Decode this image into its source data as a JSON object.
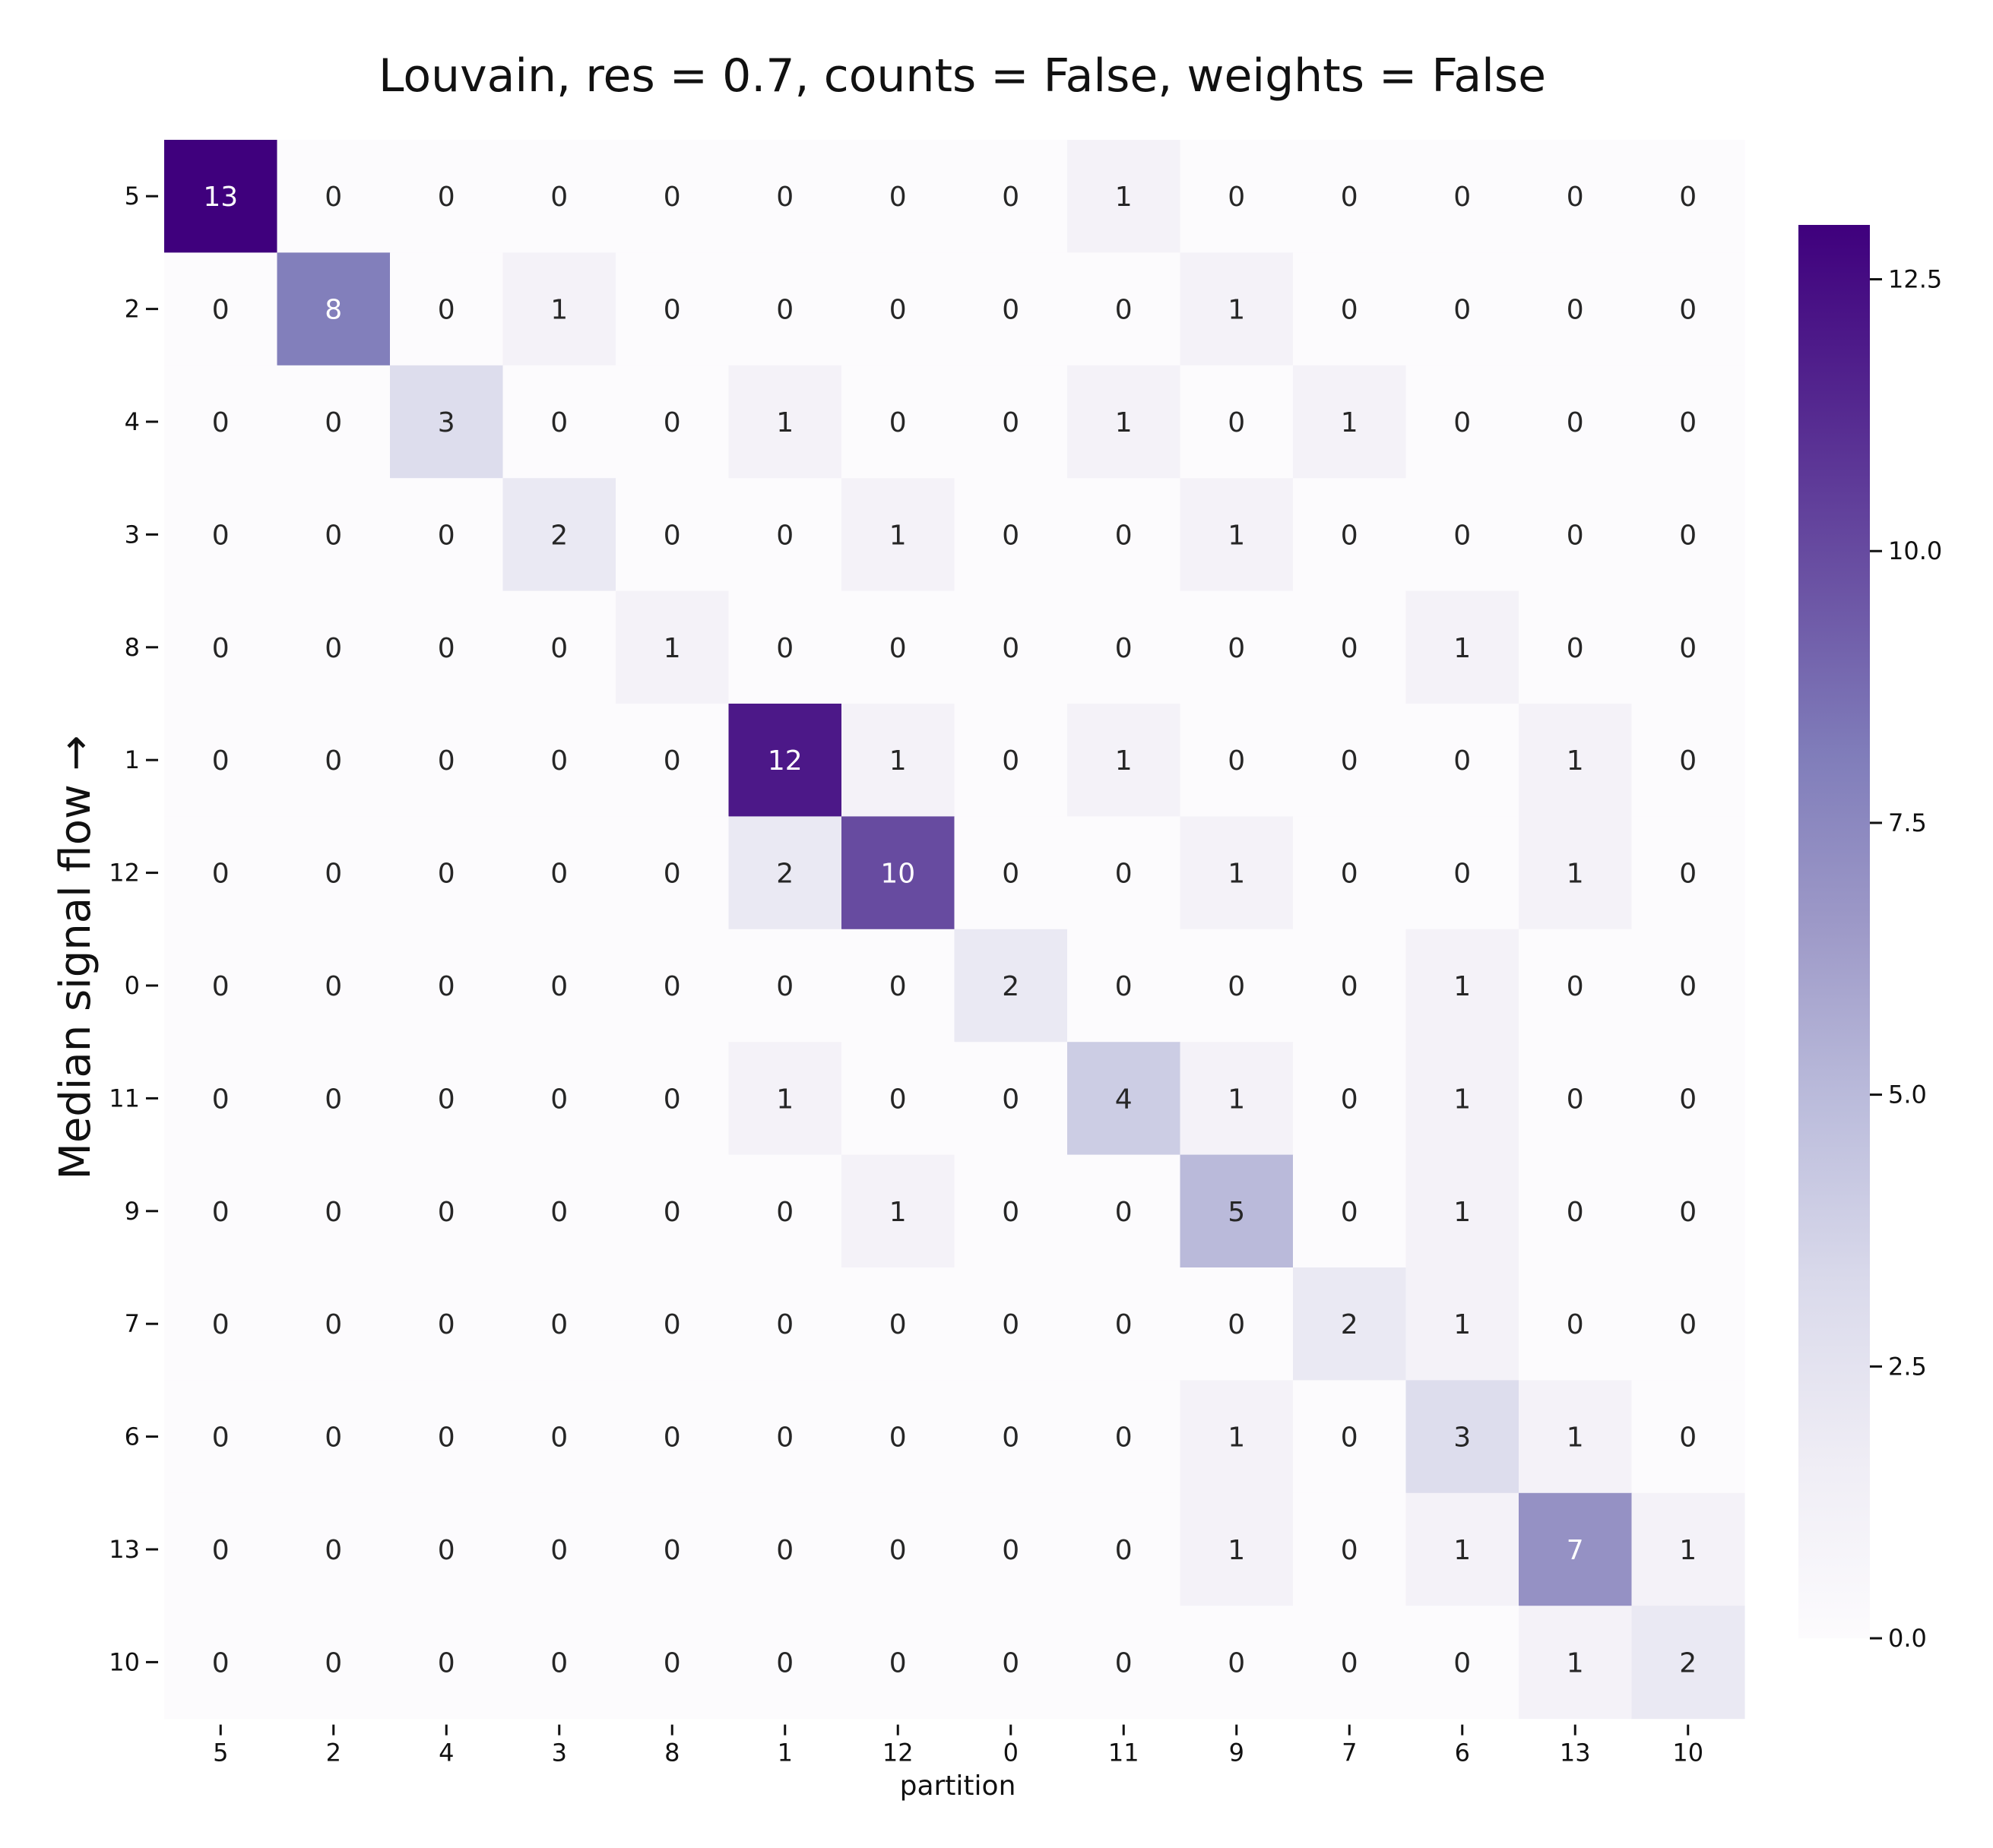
{
  "chart_data": {
    "type": "heatmap",
    "title": "Louvain, res = 0.7, counts = False, weights = False",
    "xlabel": "partition",
    "ylabel": "Median signal flow →",
    "x_categories": [
      "5",
      "2",
      "4",
      "3",
      "8",
      "1",
      "12",
      "0",
      "11",
      "9",
      "7",
      "6",
      "13",
      "10"
    ],
    "y_categories": [
      "5",
      "2",
      "4",
      "3",
      "8",
      "1",
      "12",
      "0",
      "11",
      "9",
      "7",
      "6",
      "13",
      "10"
    ],
    "values": [
      [
        13,
        0,
        0,
        0,
        0,
        0,
        0,
        0,
        1,
        0,
        0,
        0,
        0,
        0
      ],
      [
        0,
        8,
        0,
        1,
        0,
        0,
        0,
        0,
        0,
        1,
        0,
        0,
        0,
        0
      ],
      [
        0,
        0,
        3,
        0,
        0,
        1,
        0,
        0,
        1,
        0,
        1,
        0,
        0,
        0
      ],
      [
        0,
        0,
        0,
        2,
        0,
        0,
        1,
        0,
        0,
        1,
        0,
        0,
        0,
        0
      ],
      [
        0,
        0,
        0,
        0,
        1,
        0,
        0,
        0,
        0,
        0,
        0,
        1,
        0,
        0
      ],
      [
        0,
        0,
        0,
        0,
        0,
        12,
        1,
        0,
        1,
        0,
        0,
        0,
        1,
        0
      ],
      [
        0,
        0,
        0,
        0,
        0,
        2,
        10,
        0,
        0,
        1,
        0,
        0,
        1,
        0
      ],
      [
        0,
        0,
        0,
        0,
        0,
        0,
        0,
        2,
        0,
        0,
        0,
        1,
        0,
        0
      ],
      [
        0,
        0,
        0,
        0,
        0,
        1,
        0,
        0,
        4,
        1,
        0,
        1,
        0,
        0
      ],
      [
        0,
        0,
        0,
        0,
        0,
        0,
        1,
        0,
        0,
        5,
        0,
        1,
        0,
        0
      ],
      [
        0,
        0,
        0,
        0,
        0,
        0,
        0,
        0,
        0,
        0,
        2,
        1,
        0,
        0
      ],
      [
        0,
        0,
        0,
        0,
        0,
        0,
        0,
        0,
        0,
        1,
        0,
        3,
        1,
        0
      ],
      [
        0,
        0,
        0,
        0,
        0,
        0,
        0,
        0,
        0,
        1,
        0,
        1,
        7,
        1
      ],
      [
        0,
        0,
        0,
        0,
        0,
        0,
        0,
        0,
        0,
        0,
        0,
        0,
        1,
        2
      ]
    ],
    "colormap": "Purples",
    "colors": {
      "low": "#fcfbfd",
      "high": "#3f007d"
    },
    "colorbar": {
      "range": [
        0,
        13
      ],
      "ticks": [
        "0.0",
        "2.5",
        "5.0",
        "7.5",
        "10.0",
        "12.5"
      ],
      "tick_values": [
        0,
        2.5,
        5,
        7.5,
        10,
        12.5
      ]
    },
    "grid": false,
    "annotated": true
  }
}
